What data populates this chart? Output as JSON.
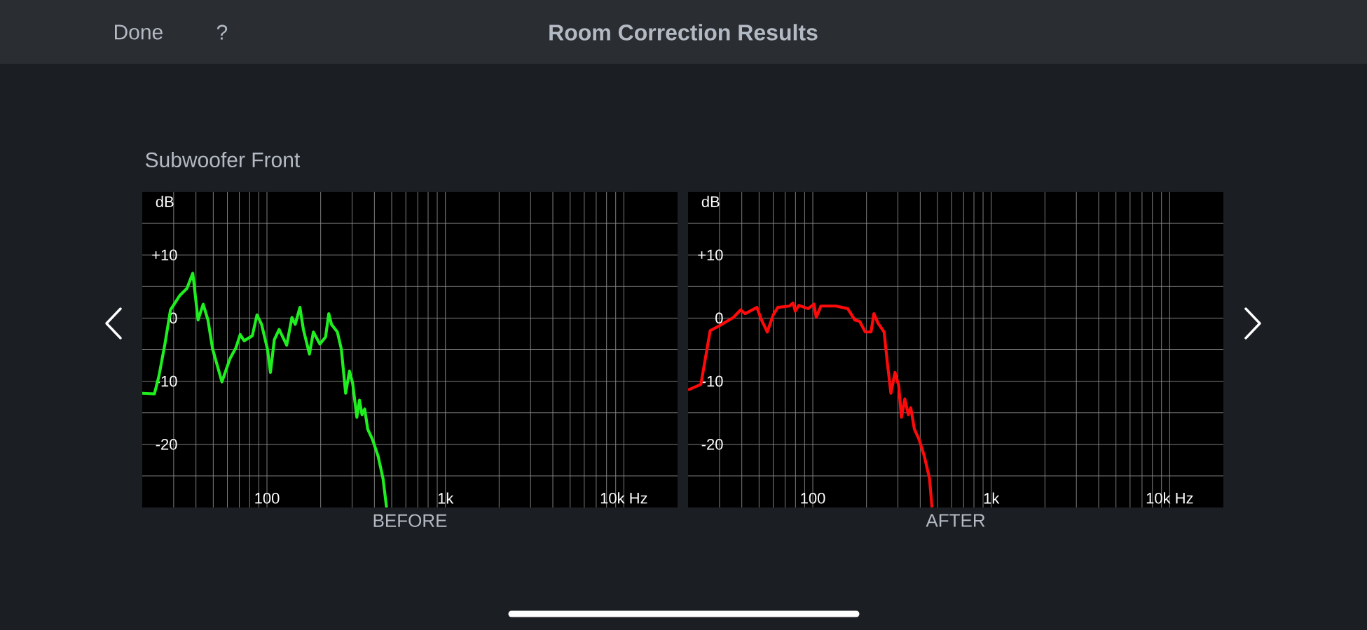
{
  "chart_data": [
    {
      "type": "line",
      "title": "Room Correction Results",
      "subtitle": "Subwoofer Front",
      "annotations": [
        "Done",
        "?"
      ],
      "xlabel": "BEFORE",
      "ylabel": "dB",
      "log": "x",
      "grid": true,
      "marker": "none",
      "color": "#1fef1f",
      "x": [
        20.1,
        23.4,
        24.8,
        26.8,
        28.8,
        32.5,
        35.6,
        38.4,
        41.1,
        43.9,
        46.7,
        49.6,
        55.9,
        62.1,
        67.0,
        70.8,
        74.5,
        82.8,
        87.9,
        93.3,
        100.6,
        104.6,
        110,
        117,
        129,
        138,
        144,
        153,
        160,
        173,
        182,
        198,
        213,
        222,
        230,
        248,
        261,
        276,
        290,
        302,
        319,
        330,
        341,
        353,
        367,
        390,
        420,
        447,
        467
      ],
      "values": [
        -11.9,
        -12.0,
        -9.2,
        -4.1,
        1.3,
        3.6,
        4.7,
        7.1,
        -0.3,
        2.2,
        -0.3,
        -4.9,
        -10.1,
        -6.4,
        -4.7,
        -2.6,
        -3.6,
        -2.8,
        0.5,
        -1.0,
        -4.9,
        -8.6,
        -3.4,
        -1.8,
        -4.3,
        0.1,
        -1.0,
        1.7,
        -1.8,
        -5.7,
        -2.2,
        -4.1,
        -3.0,
        0.7,
        -1.0,
        -2.2,
        -4.9,
        -11.9,
        -8.4,
        -10.3,
        -15.7,
        -13.0,
        -15.3,
        -14.4,
        -17.6,
        -19.2,
        -21.9,
        -25.4,
        -29.8
      ],
      "xlim": [
        20,
        20000
      ],
      "ylim": [
        -30,
        20
      ],
      "xticks": [
        {
          "value": 30,
          "label": null
        },
        {
          "value": 40,
          "label": null
        },
        {
          "value": 50,
          "label": null
        },
        {
          "value": 60,
          "label": null
        },
        {
          "value": 70,
          "label": null
        },
        {
          "value": 80,
          "label": null
        },
        {
          "value": 90,
          "label": null
        },
        100,
        {
          "value": 200,
          "label": null
        },
        {
          "value": 300,
          "label": null
        },
        {
          "value": 400,
          "label": null
        },
        {
          "value": 500,
          "label": null
        },
        {
          "value": 600,
          "label": null
        },
        {
          "value": 700,
          "label": null
        },
        {
          "value": 800,
          "label": null
        },
        {
          "value": 900,
          "label": null
        },
        {
          "value": 1000,
          "label": "1k"
        },
        {
          "value": 2000,
          "label": null
        },
        {
          "value": 3000,
          "label": null
        },
        {
          "value": 4000,
          "label": null
        },
        {
          "value": 5000,
          "label": null
        },
        {
          "value": 6000,
          "label": null
        },
        {
          "value": 7000,
          "label": null
        },
        {
          "value": 8000,
          "label": null
        },
        {
          "value": 9000,
          "label": null
        },
        {
          "value": 10000,
          "label": "10k Hz"
        }
      ],
      "yticks": [
        {
          "value": 15,
          "label": null
        },
        {
          "value": 10,
          "label": "+10"
        },
        {
          "value": 5,
          "label": null
        },
        0,
        {
          "value": -5,
          "label": null
        },
        -10,
        {
          "value": -15,
          "label": null
        },
        -20,
        {
          "value": -25,
          "label": null
        }
      ]
    },
    {
      "type": "line",
      "xlabel": "AFTER",
      "ylabel": "dB",
      "log": "x",
      "grid": true,
      "marker": "none",
      "color": "#ff0a0a",
      "x": [
        20.3,
        23.6,
        26.6,
        30.0,
        35.9,
        39.4,
        41.8,
        48.6,
        51.6,
        55.6,
        60.0,
        63.7,
        74.0,
        77.4,
        79.8,
        83.5,
        94.2,
        101.5,
        104.6,
        111,
        135,
        157,
        172,
        183,
        197,
        212,
        220,
        232,
        251,
        262,
        274,
        289,
        303,
        314,
        328,
        343,
        354,
        371,
        394,
        422,
        451,
        465
      ],
      "values": [
        -11.3,
        -10.5,
        -2.0,
        -1.2,
        0.1,
        1.3,
        0.7,
        1.7,
        -0.3,
        -2.2,
        0.5,
        1.7,
        1.9,
        2.4,
        1.1,
        2.0,
        1.5,
        2.2,
        0.1,
        1.9,
        1.9,
        1.5,
        -0.3,
        -0.5,
        -2.2,
        -2.2,
        0.7,
        -0.8,
        -2.2,
        -7.2,
        -11.9,
        -8.6,
        -10.7,
        -15.7,
        -12.8,
        -15.3,
        -14.2,
        -17.6,
        -19.2,
        -21.9,
        -25.4,
        -29.8
      ],
      "xlim": [
        20,
        20000
      ],
      "ylim": [
        -30,
        20
      ],
      "xticks": [
        {
          "value": 30,
          "label": null
        },
        {
          "value": 40,
          "label": null
        },
        {
          "value": 50,
          "label": null
        },
        {
          "value": 60,
          "label": null
        },
        {
          "value": 70,
          "label": null
        },
        {
          "value": 80,
          "label": null
        },
        {
          "value": 90,
          "label": null
        },
        100,
        {
          "value": 200,
          "label": null
        },
        {
          "value": 300,
          "label": null
        },
        {
          "value": 400,
          "label": null
        },
        {
          "value": 500,
          "label": null
        },
        {
          "value": 600,
          "label": null
        },
        {
          "value": 700,
          "label": null
        },
        {
          "value": 800,
          "label": null
        },
        {
          "value": 900,
          "label": null
        },
        {
          "value": 1000,
          "label": "1k"
        },
        {
          "value": 2000,
          "label": null
        },
        {
          "value": 3000,
          "label": null
        },
        {
          "value": 4000,
          "label": null
        },
        {
          "value": 5000,
          "label": null
        },
        {
          "value": 6000,
          "label": null
        },
        {
          "value": 7000,
          "label": null
        },
        {
          "value": 8000,
          "label": null
        },
        {
          "value": 9000,
          "label": null
        },
        {
          "value": 10000,
          "label": "10k Hz"
        }
      ],
      "yticks": [
        {
          "value": 15,
          "label": null
        },
        {
          "value": 10,
          "label": "+10"
        },
        {
          "value": 5,
          "label": null
        },
        0,
        {
          "value": -5,
          "label": null
        },
        -10,
        {
          "value": -15,
          "label": null
        },
        -20,
        {
          "value": -25,
          "label": null
        }
      ]
    }
  ]
}
